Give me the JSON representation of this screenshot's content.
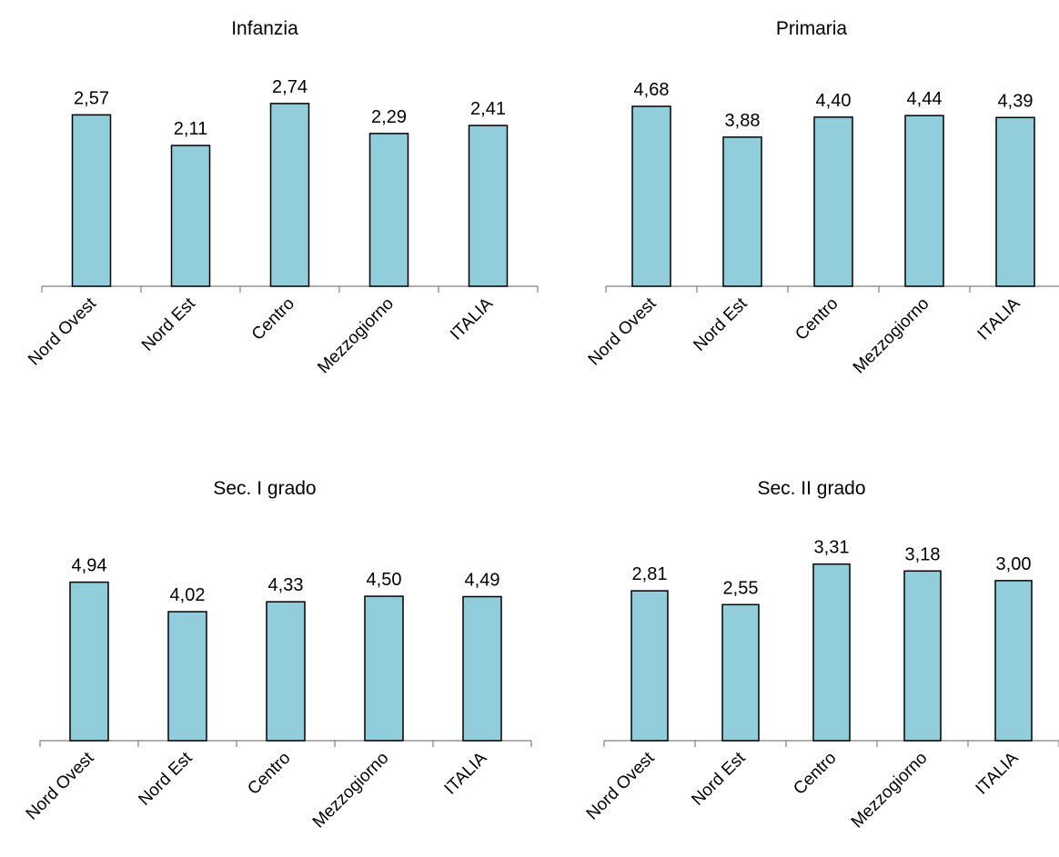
{
  "chart_data": [
    {
      "type": "bar",
      "title": "Infanzia",
      "categories": [
        "Nord Ovest",
        "Nord Est",
        "Centro",
        "Mezzogiorno",
        "ITALIA"
      ],
      "values": [
        2.57,
        2.11,
        2.74,
        2.29,
        2.41
      ],
      "labels": [
        "2,57",
        "2,11",
        "2,74",
        "2,29",
        "2,41"
      ],
      "xlabel": "",
      "ylabel": "",
      "grid": false
    },
    {
      "type": "bar",
      "title": "Primaria",
      "categories": [
        "Nord Ovest",
        "Nord Est",
        "Centro",
        "Mezzogiorno",
        "ITALIA"
      ],
      "values": [
        4.68,
        3.88,
        4.4,
        4.44,
        4.39
      ],
      "labels": [
        "4,68",
        "3,88",
        "4,40",
        "4,44",
        "4,39"
      ],
      "xlabel": "",
      "ylabel": "",
      "grid": false
    },
    {
      "type": "bar",
      "title": "Sec. I grado",
      "categories": [
        "Nord Ovest",
        "Nord Est",
        "Centro",
        "Mezzogiorno",
        "ITALIA"
      ],
      "values": [
        4.94,
        4.02,
        4.33,
        4.5,
        4.49
      ],
      "labels": [
        "4,94",
        "4,02",
        "4,33",
        "4,50",
        "4,49"
      ],
      "xlabel": "",
      "ylabel": "",
      "grid": false
    },
    {
      "type": "bar",
      "title": "Sec. II grado",
      "categories": [
        "Nord Ovest",
        "Nord Est",
        "Centro",
        "Mezzogiorno",
        "ITALIA"
      ],
      "values": [
        2.81,
        2.55,
        3.31,
        3.18,
        3.0
      ],
      "labels": [
        "2,81",
        "2,55",
        "3,31",
        "3,18",
        "3,00"
      ],
      "xlabel": "",
      "ylabel": "",
      "grid": false
    }
  ],
  "colors": {
    "bar_fill": "#92cddc",
    "bar_stroke": "#000000",
    "axis": "#808080",
    "text": "#000000"
  }
}
